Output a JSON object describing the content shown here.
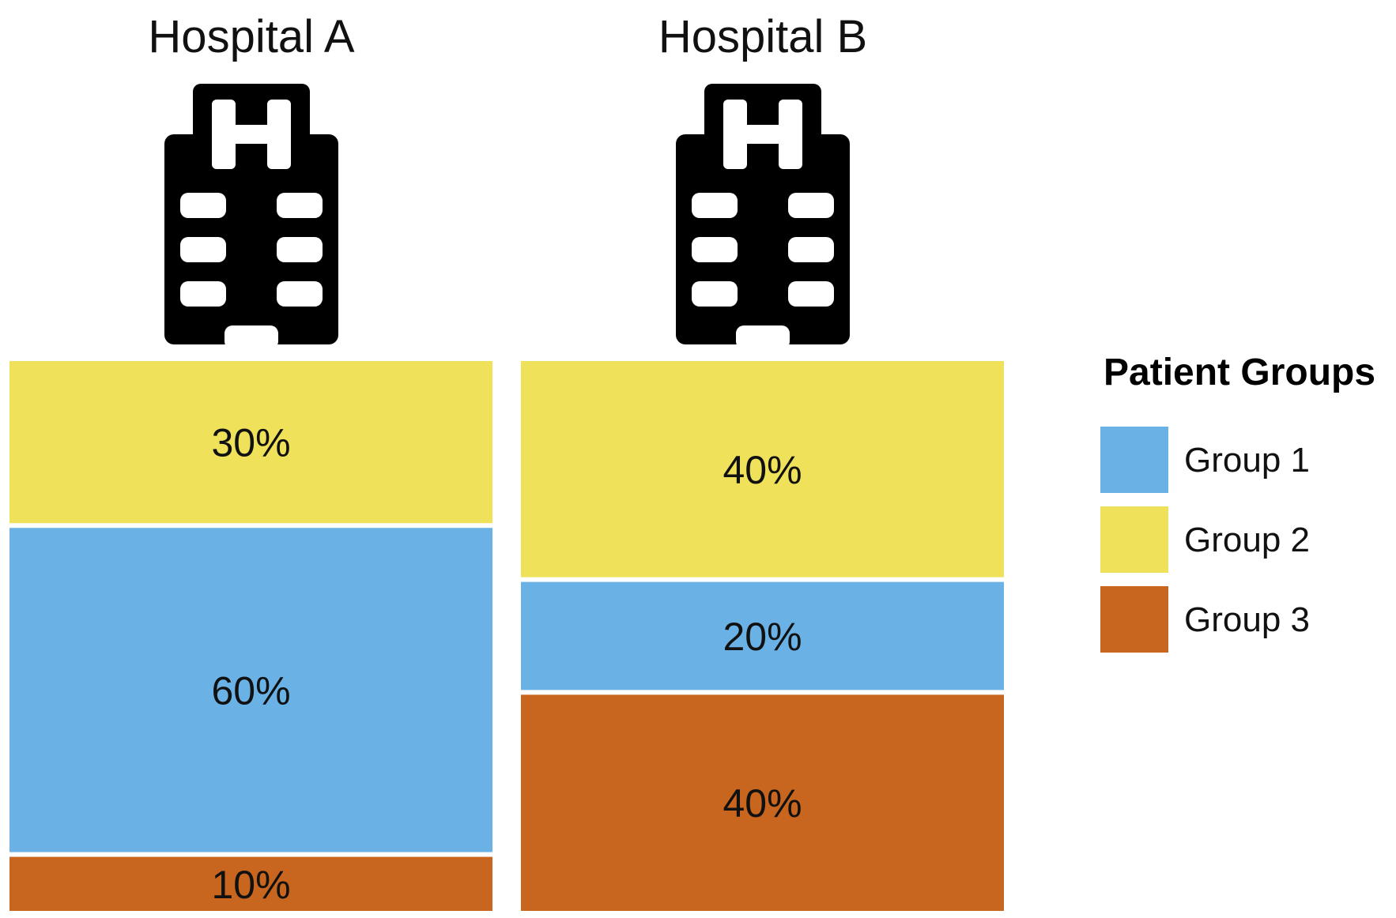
{
  "chart_data": {
    "type": "bar",
    "stacked": true,
    "normalized": true,
    "categories": [
      "Hospital A",
      "Hospital B"
    ],
    "series": [
      {
        "name": "Group 1",
        "color": "#6AB2E5",
        "values": [
          60,
          20
        ]
      },
      {
        "name": "Group 2",
        "color": "#EFE15A",
        "values": [
          30,
          40
        ]
      },
      {
        "name": "Group 3",
        "color": "#C8651F",
        "values": [
          10,
          40
        ]
      }
    ],
    "stack_order_top_to_bottom": [
      [
        "Group 2",
        "Group 1",
        "Group 3"
      ],
      [
        "Group 2",
        "Group 1",
        "Group 3"
      ]
    ],
    "value_suffix": "%",
    "category_icon": "hospital-building-icon",
    "legend": {
      "title": "Patient Groups",
      "position": "right"
    }
  }
}
